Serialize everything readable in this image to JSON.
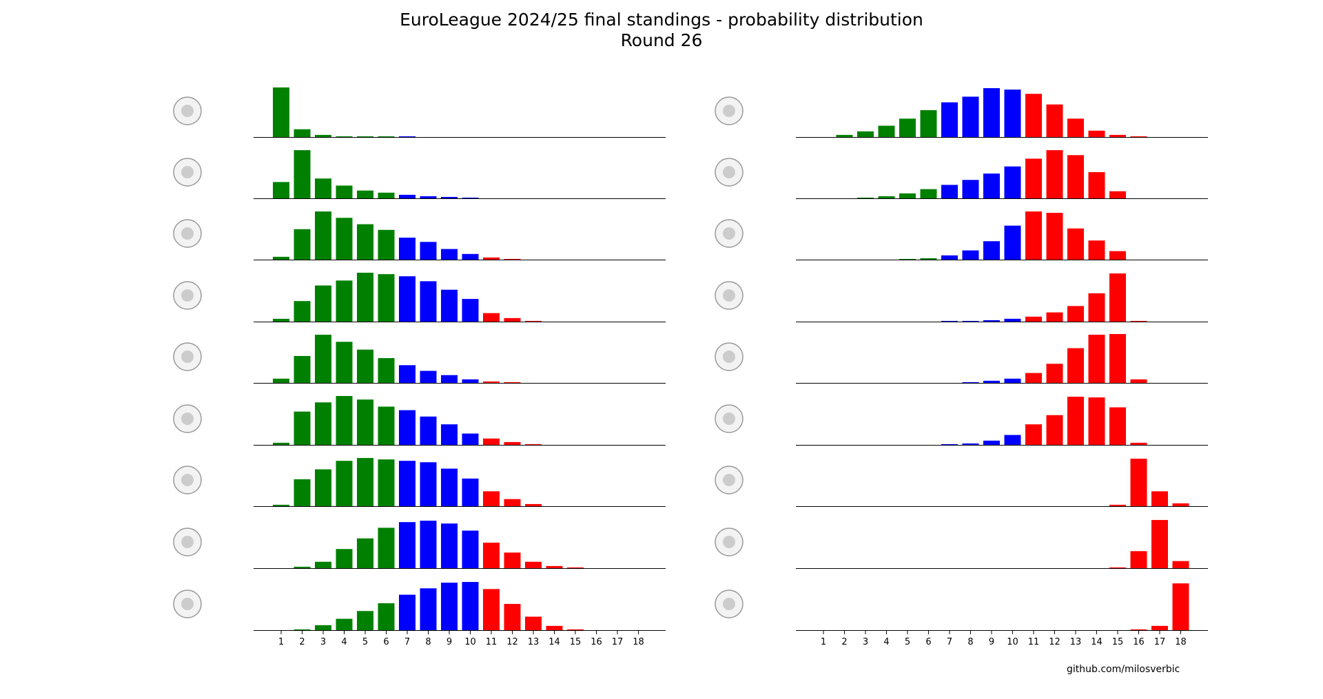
{
  "title": "EuroLeague 2024/25 final standings - probability distribution",
  "subtitle": "Round 26",
  "footer": "github.com/milosverbic",
  "colors": {
    "top": "#008000",
    "mid": "#0000ff",
    "bottom": "#ff0000",
    "axis": "#000000"
  },
  "chart_data": {
    "type": "bar",
    "x": [
      1,
      2,
      3,
      4,
      5,
      6,
      7,
      8,
      9,
      10,
      11,
      12,
      13,
      14,
      15,
      16,
      17,
      18
    ],
    "xlabel": "",
    "ylabel": "",
    "grid": false,
    "color_bands": [
      {
        "positions": [
          1,
          6
        ],
        "color": "green"
      },
      {
        "positions": [
          7,
          10
        ],
        "color": "blue"
      },
      {
        "positions": [
          11,
          18
        ],
        "color": "red"
      }
    ],
    "columns": [
      {
        "teams": [
          {
            "logo": "olympiacos-logo",
            "values": [
              0.7,
              0.11,
              0.03,
              0.01,
              0.01,
              0.01,
              0.01,
              0,
              0,
              0,
              0,
              0,
              0,
              0,
              0,
              0,
              0,
              0
            ]
          },
          {
            "logo": "fenerbahce-beko-logo",
            "values": [
              0.23,
              0.68,
              0.28,
              0.18,
              0.11,
              0.08,
              0.05,
              0.03,
              0.02,
              0.01,
              0,
              0,
              0,
              0,
              0,
              0,
              0,
              0
            ]
          },
          {
            "logo": "panathinaikos-logo",
            "values": [
              0.04,
              0.43,
              0.68,
              0.59,
              0.5,
              0.42,
              0.31,
              0.25,
              0.15,
              0.08,
              0.03,
              0.01,
              0,
              0,
              0,
              0,
              0,
              0
            ]
          },
          {
            "logo": "monaco-logo",
            "values": [
              0.04,
              0.29,
              0.51,
              0.58,
              0.69,
              0.67,
              0.64,
              0.57,
              0.45,
              0.32,
              0.12,
              0.05,
              0.01,
              0,
              0,
              0,
              0,
              0
            ]
          },
          {
            "logo": "crvena-zvezda-logo",
            "values": [
              0.06,
              0.38,
              0.68,
              0.58,
              0.47,
              0.35,
              0.25,
              0.17,
              0.11,
              0.05,
              0.02,
              0.01,
              0,
              0,
              0,
              0,
              0,
              0
            ]
          },
          {
            "logo": "bayern-basketball-logo",
            "values": [
              0.03,
              0.47,
              0.6,
              0.69,
              0.64,
              0.54,
              0.49,
              0.4,
              0.29,
              0.16,
              0.09,
              0.04,
              0.01,
              0,
              0,
              0,
              0,
              0
            ]
          },
          {
            "logo": "paris-basketball-logo",
            "values": [
              0.02,
              0.38,
              0.52,
              0.64,
              0.68,
              0.66,
              0.64,
              0.62,
              0.53,
              0.39,
              0.21,
              0.1,
              0.03,
              0,
              0,
              0,
              0,
              0
            ]
          },
          {
            "logo": "partizan-logo",
            "values": [
              0,
              0.02,
              0.09,
              0.27,
              0.42,
              0.57,
              0.65,
              0.67,
              0.63,
              0.53,
              0.36,
              0.22,
              0.09,
              0.03,
              0.01,
              0,
              0,
              0
            ]
          },
          {
            "logo": "barca-logo",
            "values": [
              0,
              0.01,
              0.07,
              0.16,
              0.27,
              0.38,
              0.5,
              0.59,
              0.67,
              0.68,
              0.58,
              0.37,
              0.19,
              0.06,
              0.01,
              0,
              0,
              0
            ]
          }
        ]
      },
      {
        "teams": [
          {
            "logo": "olimpia-milano-logo",
            "values": [
              0,
              0.03,
              0.08,
              0.16,
              0.26,
              0.38,
              0.49,
              0.57,
              0.69,
              0.67,
              0.61,
              0.46,
              0.26,
              0.09,
              0.03,
              0.01,
              0,
              0
            ]
          },
          {
            "logo": "real-madrid-logo",
            "values": [
              0,
              0,
              0.01,
              0.03,
              0.07,
              0.13,
              0.19,
              0.26,
              0.35,
              0.45,
              0.56,
              0.68,
              0.61,
              0.37,
              0.1,
              0,
              0,
              0
            ]
          },
          {
            "logo": "anadolu-efes-logo",
            "values": [
              0,
              0,
              0,
              0,
              0.01,
              0.02,
              0.06,
              0.13,
              0.26,
              0.48,
              0.68,
              0.66,
              0.44,
              0.27,
              0.12,
              0,
              0,
              0
            ]
          },
          {
            "logo": "zalgiris-logo",
            "values": [
              0,
              0,
              0,
              0,
              0,
              0,
              0.01,
              0.01,
              0.02,
              0.04,
              0.07,
              0.13,
              0.22,
              0.4,
              0.68,
              0.01,
              0,
              0
            ]
          },
          {
            "logo": "baskonia-logo",
            "values": [
              0,
              0,
              0,
              0,
              0,
              0,
              0,
              0.01,
              0.03,
              0.06,
              0.14,
              0.27,
              0.49,
              0.68,
              0.69,
              0.05,
              0,
              0
            ]
          },
          {
            "logo": "asvel-logo",
            "values": [
              0,
              0,
              0,
              0,
              0,
              0,
              0.01,
              0.02,
              0.06,
              0.14,
              0.29,
              0.42,
              0.68,
              0.67,
              0.53,
              0.03,
              0,
              0
            ]
          },
          {
            "logo": "virtus-bologna-logo",
            "values": [
              0,
              0,
              0,
              0,
              0,
              0,
              0,
              0,
              0,
              0,
              0,
              0,
              0,
              0,
              0.02,
              0.67,
              0.21,
              0.04
            ]
          },
          {
            "logo": "maccabi-tel-aviv-logo",
            "values": [
              0,
              0,
              0,
              0,
              0,
              0,
              0,
              0,
              0,
              0,
              0,
              0,
              0,
              0,
              0.01,
              0.24,
              0.68,
              0.1
            ]
          },
          {
            "logo": "alba-berlin-logo",
            "values": [
              0,
              0,
              0,
              0,
              0,
              0,
              0,
              0,
              0,
              0,
              0,
              0,
              0,
              0,
              0,
              0.01,
              0.06,
              0.66
            ]
          }
        ]
      }
    ]
  }
}
